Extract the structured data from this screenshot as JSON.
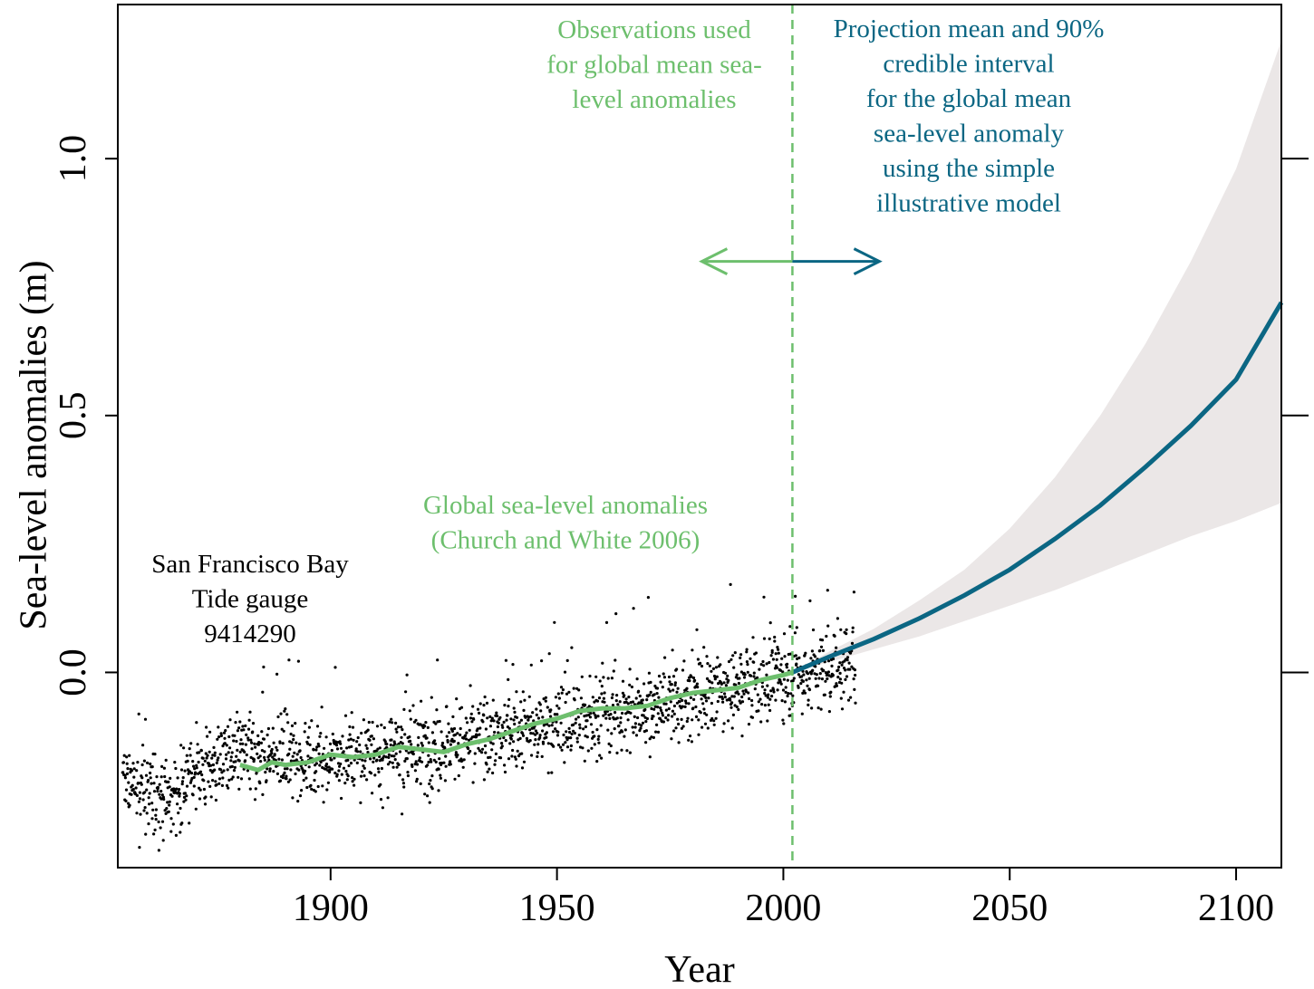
{
  "chart_data": {
    "type": "scatter",
    "xlabel": "Year",
    "ylabel": "Sea-level anomalies (m)",
    "xlim": [
      1853,
      2110
    ],
    "ylim": [
      -0.38,
      1.3
    ],
    "x_ticks": [
      1900,
      1950,
      2000,
      2050,
      2100
    ],
    "y_ticks": [
      0.0,
      0.5,
      1.0
    ],
    "y_tick_labels": [
      "0.0",
      "0.5",
      "1.0"
    ],
    "grid": false,
    "divider_year": 2002,
    "colors": {
      "observations": "#6dbf6d",
      "projection": "#0b6683",
      "band": "#ebe7e7",
      "points": "#000000"
    },
    "annotations": {
      "observations": [
        "Observations used",
        "for global mean sea-",
        "level anomalies"
      ],
      "projection": [
        "Projection mean and 90%",
        "credible interval",
        "for the global mean",
        "sea-level anomaly",
        "using the simple",
        "illustrative model"
      ],
      "global_series": [
        "Global sea-level anomalies",
        "(Church and White 2006)"
      ],
      "tide_gauge": [
        "San Francisco Bay",
        "Tide gauge",
        "9414290"
      ]
    },
    "tide_gauge_points": {
      "x_range": [
        1854,
        2016
      ],
      "trend": [
        [
          1854,
          -0.22
        ],
        [
          1865,
          -0.25
        ],
        [
          1870,
          -0.19
        ],
        [
          1880,
          -0.16
        ],
        [
          1900,
          -0.17
        ],
        [
          1920,
          -0.15
        ],
        [
          1940,
          -0.12
        ],
        [
          1960,
          -0.08
        ],
        [
          1980,
          -0.05
        ],
        [
          2000,
          -0.01
        ],
        [
          2016,
          0.02
        ]
      ],
      "spread": 0.055,
      "count": 1950
    },
    "series": [
      {
        "name": "Global sea-level anomalies (Church and White 2006)",
        "x": [
          1880,
          1884,
          1887,
          1890,
          1895,
          1900,
          1905,
          1910,
          1915,
          1920,
          1925,
          1930,
          1935,
          1940,
          1945,
          1950,
          1955,
          1960,
          1965,
          1970,
          1975,
          1980,
          1985,
          1990,
          1995,
          2000,
          2002
        ],
        "y": [
          -0.18,
          -0.19,
          -0.175,
          -0.18,
          -0.175,
          -0.16,
          -0.165,
          -0.16,
          -0.145,
          -0.15,
          -0.155,
          -0.14,
          -0.13,
          -0.115,
          -0.1,
          -0.09,
          -0.075,
          -0.07,
          -0.07,
          -0.065,
          -0.05,
          -0.04,
          -0.035,
          -0.03,
          -0.015,
          -0.005,
          0.0
        ]
      },
      {
        "name": "Projection mean",
        "x": [
          2002,
          2010,
          2020,
          2030,
          2040,
          2050,
          2060,
          2070,
          2080,
          2090,
          2100,
          2110
        ],
        "y": [
          0.0,
          0.03,
          0.065,
          0.105,
          0.15,
          0.2,
          0.26,
          0.325,
          0.4,
          0.48,
          0.57,
          0.72
        ]
      }
    ],
    "credible_interval": {
      "x": [
        2002,
        2010,
        2020,
        2030,
        2040,
        2050,
        2060,
        2070,
        2080,
        2090,
        2100,
        2110
      ],
      "lower": [
        0.0,
        0.02,
        0.045,
        0.07,
        0.1,
        0.13,
        0.16,
        0.195,
        0.23,
        0.265,
        0.295,
        0.33
      ],
      "upper": [
        0.0,
        0.04,
        0.085,
        0.14,
        0.2,
        0.28,
        0.38,
        0.5,
        0.64,
        0.8,
        0.98,
        1.23
      ]
    }
  }
}
